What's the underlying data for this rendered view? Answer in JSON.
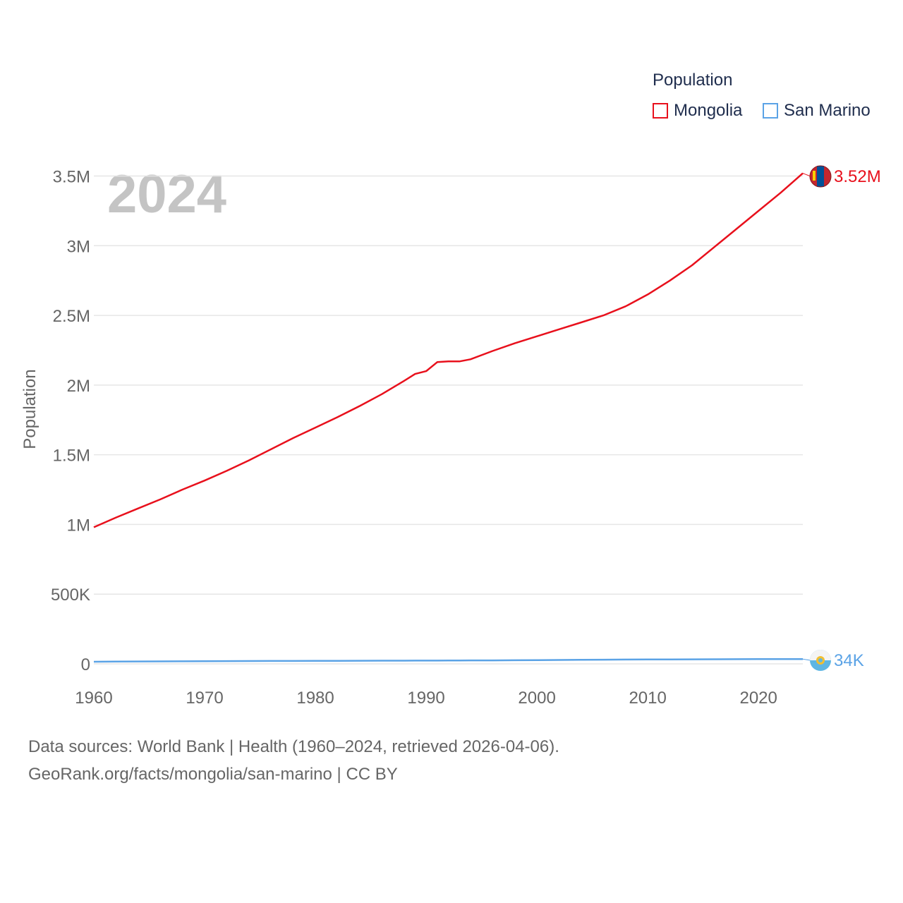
{
  "chart_data": {
    "type": "line",
    "year_label": "2024",
    "ylabel": "Population",
    "legend_title": "Population",
    "x": [
      1960,
      1962,
      1964,
      1966,
      1968,
      1970,
      1972,
      1974,
      1976,
      1978,
      1980,
      1982,
      1984,
      1986,
      1988,
      1989,
      1990,
      1991,
      1992,
      1993,
      1994,
      1996,
      1998,
      2000,
      2002,
      2004,
      2006,
      2008,
      2010,
      2012,
      2014,
      2016,
      2018,
      2020,
      2022,
      2024
    ],
    "xlim": [
      1960,
      2024
    ],
    "ylim": [
      0,
      3700000
    ],
    "xticks": [
      1960,
      1970,
      1980,
      1990,
      2000,
      2010,
      2020
    ],
    "xtick_labels": [
      "1960",
      "1970",
      "1980",
      "1990",
      "2000",
      "2010",
      "2020"
    ],
    "yticks": [
      0,
      500000,
      1000000,
      1500000,
      2000000,
      2500000,
      3000000,
      3500000
    ],
    "ytick_labels": [
      "0",
      "500K",
      "1M",
      "1.5M",
      "2M",
      "2.5M",
      "3M",
      "3.5M"
    ],
    "series": [
      {
        "name": "Mongolia",
        "color": "#e8101c",
        "end_label": "3.52M",
        "values": [
          980000,
          1050000,
          1115000,
          1180000,
          1250000,
          1315000,
          1385000,
          1460000,
          1540000,
          1620000,
          1695000,
          1770000,
          1850000,
          1935000,
          2030000,
          2080000,
          2100000,
          2165000,
          2170000,
          2170000,
          2185000,
          2245000,
          2300000,
          2350000,
          2400000,
          2450000,
          2500000,
          2565000,
          2650000,
          2750000,
          2860000,
          2990000,
          3120000,
          3250000,
          3380000,
          3520000
        ]
      },
      {
        "name": "San Marino",
        "color": "#5ba3e6",
        "end_label": "34K",
        "values": [
          15000,
          16000,
          17000,
          17500,
          18000,
          19000,
          19500,
          20000,
          20500,
          21000,
          21500,
          22000,
          22500,
          22800,
          23000,
          23100,
          23200,
          23500,
          24000,
          24300,
          24600,
          25000,
          26000,
          27000,
          28000,
          29000,
          30000,
          31000,
          31500,
          32000,
          32500,
          33000,
          33500,
          34000,
          34000,
          34000
        ]
      }
    ]
  },
  "footer": {
    "source_line": "Data sources: World Bank | Health (1960–2024, retrieved 2026-04-06).",
    "url_line": "GeoRank.org/facts/mongolia/san-marino | CC BY"
  }
}
